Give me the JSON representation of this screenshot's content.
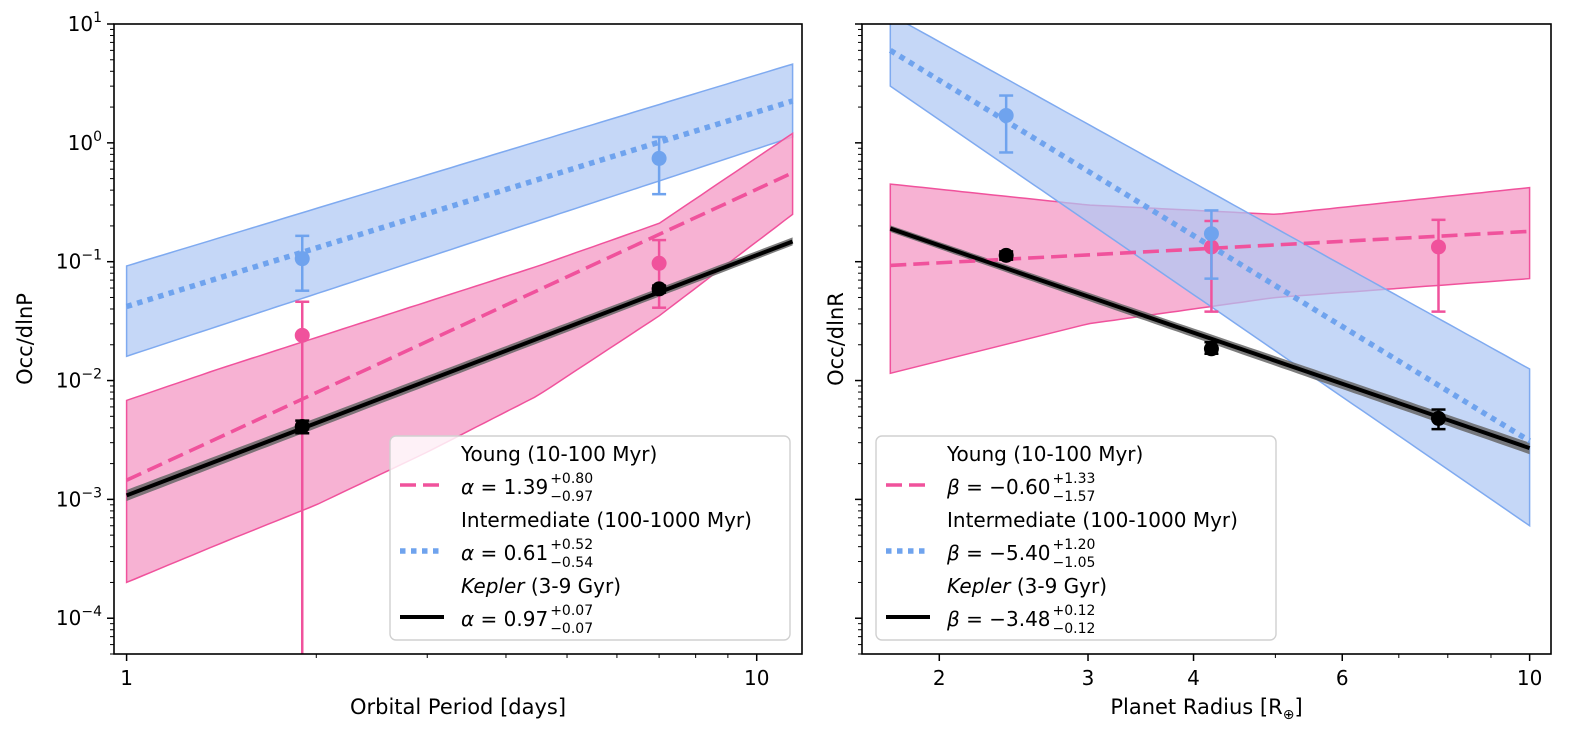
{
  "chart_data": [
    {
      "type": "line",
      "panel": "left",
      "xlabel": "Orbital Period [days]",
      "ylabel": "Occ/dlnP",
      "xscale": "log",
      "yscale": "log",
      "xlim": [
        0.955,
        11.8
      ],
      "ylim": [
        5e-05,
        10
      ],
      "xticks": [
        {
          "value": 1,
          "label": "1"
        },
        {
          "value": 10,
          "label": "10"
        }
      ],
      "yticks": [
        {
          "value": 0.0001,
          "base": "10",
          "exp": "−4"
        },
        {
          "value": 0.001,
          "base": "10",
          "exp": "−3"
        },
        {
          "value": 0.01,
          "base": "10",
          "exp": "−2"
        },
        {
          "value": 0.1,
          "base": "10",
          "exp": "−1"
        },
        {
          "value": 1,
          "base": "10",
          "exp": "0"
        },
        {
          "value": 10,
          "base": "10",
          "exp": "1"
        }
      ],
      "legend": {
        "location": "lower right",
        "entries": [
          {
            "series": "young",
            "name": "Young (10-100 Myr)",
            "param": "α",
            "value": "1.39",
            "sup": "+0.80",
            "sub": "−0.97"
          },
          {
            "series": "intermediate",
            "name": "Intermediate (100-1000 Myr)",
            "param": "α",
            "value": "0.61",
            "sup": "+0.52",
            "sub": "−0.54"
          },
          {
            "series": "kepler",
            "name": "Kepler",
            "name_rest": " (3-9 Gyr)",
            "param": "α",
            "value": "0.97",
            "sup": "+0.07",
            "sub": "−0.07"
          }
        ]
      },
      "series": [
        {
          "key": "intermediate",
          "name": "Intermediate (100-1000 Myr)",
          "color": "#6FA3EE",
          "line": "dotted",
          "fit": {
            "x": [
              1,
              11.4
            ],
            "y": [
              0.042,
              2.25
            ]
          },
          "band": {
            "x": [
              1,
              11.4
            ],
            "lower": [
              0.016,
              1.12
            ],
            "upper": [
              0.092,
              4.6
            ]
          },
          "points": [
            {
              "x": 1.9,
              "y": 0.106,
              "yerr_low": 0.057,
              "yerr_high": 0.165
            },
            {
              "x": 7.0,
              "y": 0.74,
              "yerr_low": 0.37,
              "yerr_high": 1.12
            }
          ]
        },
        {
          "key": "young",
          "name": "Young (10-100 Myr)",
          "color": "#F0529C",
          "line": "dashed",
          "fit": {
            "x": [
              1,
              11.4
            ],
            "y": [
              0.00145,
              0.56
            ]
          },
          "band": {
            "x": [
              1,
              1.4,
              2,
              3,
              4.5,
              7,
              11.4
            ],
            "lower": [
              0.0002,
              0.00042,
              0.0009,
              0.0025,
              0.0075,
              0.035,
              0.25
            ],
            "upper": [
              0.0068,
              0.0125,
              0.023,
              0.046,
              0.092,
              0.21,
              1.2
            ]
          },
          "points": [
            {
              "x": 1.9,
              "y": 0.024,
              "yerr_low": 1e-05,
              "yerr_high": 0.046
            },
            {
              "x": 7.0,
              "y": 0.097,
              "yerr_low": 0.041,
              "yerr_high": 0.152
            }
          ]
        },
        {
          "key": "kepler",
          "name": "Kepler (3-9 Gyr)",
          "color": "#000000",
          "line": "solid",
          "fit": {
            "x": [
              1,
              11.4
            ],
            "y": [
              0.00108,
              0.148
            ]
          },
          "band": {
            "x": [
              1,
              11.4
            ],
            "lower": [
              0.00097,
              0.137
            ],
            "upper": [
              0.0012,
              0.16
            ]
          },
          "points": [
            {
              "x": 1.9,
              "y": 0.0041,
              "yerr_low": 0.0036,
              "yerr_high": 0.0046
            },
            {
              "x": 7.0,
              "y": 0.059,
              "yerr_low": 0.055,
              "yerr_high": 0.063
            }
          ]
        }
      ]
    },
    {
      "type": "line",
      "panel": "right",
      "xlabel": "Planet Radius [R",
      "xlabel_symbol": "⊕",
      "xlabel_end": "]",
      "ylabel": "Occ/dlnR",
      "xscale": "log",
      "yscale": "log",
      "xlim": [
        1.62,
        10.6
      ],
      "ylim": [
        5e-05,
        10
      ],
      "xticks": [
        {
          "value": 2,
          "label": "2"
        },
        {
          "value": 3,
          "label": "3"
        },
        {
          "value": 4,
          "label": "4"
        },
        {
          "value": 6,
          "label": "6"
        },
        {
          "value": 10,
          "label": "10"
        }
      ],
      "legend": {
        "location": "lower left",
        "entries": [
          {
            "series": "young",
            "name": "Young (10-100 Myr)",
            "param": "β",
            "value": "−0.60",
            "sup": "+1.33",
            "sub": "−1.57"
          },
          {
            "series": "intermediate",
            "name": "Intermediate (100-1000 Myr)",
            "param": "β",
            "value": "−5.40",
            "sup": "+1.20",
            "sub": "−1.05"
          },
          {
            "series": "kepler",
            "name": "Kepler",
            "name_rest": " (3-9 Gyr)",
            "param": "β",
            "value": "−3.48",
            "sup": "+0.12",
            "sub": "−0.12"
          }
        ]
      },
      "series": [
        {
          "key": "young",
          "name": "Young (10-100 Myr)",
          "color": "#F0529C",
          "line": "dashed",
          "fit": {
            "x": [
              1.75,
              10
            ],
            "y": [
              0.093,
              0.18
            ]
          },
          "band": {
            "x": [
              1.75,
              3,
              5,
              10
            ],
            "lower": [
              0.0115,
              0.03,
              0.05,
              0.072
            ],
            "upper": [
              0.45,
              0.3,
              0.25,
              0.42
            ]
          },
          "points": [
            {
              "x": 4.2,
              "y": 0.133,
              "yerr_low": 0.038,
              "yerr_high": 0.22
            },
            {
              "x": 7.8,
              "y": 0.133,
              "yerr_low": 0.038,
              "yerr_high": 0.225
            }
          ]
        },
        {
          "key": "intermediate",
          "name": "Intermediate (100-1000 Myr)",
          "color": "#6FA3EE",
          "line": "dotted",
          "fit": {
            "x": [
              1.75,
              10
            ],
            "y": [
              6.0,
              0.0031
            ]
          },
          "band": {
            "x": [
              1.75,
              10
            ],
            "lower": [
              3.0,
              0.0006
            ],
            "upper": [
              12.0,
              0.0125
            ]
          },
          "points": [
            {
              "x": 2.4,
              "y": 1.7,
              "yerr_low": 0.83,
              "yerr_high": 2.5
            },
            {
              "x": 4.2,
              "y": 0.172,
              "yerr_low": 0.072,
              "yerr_high": 0.27
            }
          ]
        },
        {
          "key": "kepler",
          "name": "Kepler (3-9 Gyr)",
          "color": "#000000",
          "line": "solid",
          "fit": {
            "x": [
              1.75,
              10
            ],
            "y": [
              0.19,
              0.0027
            ]
          },
          "band": {
            "x": [
              1.75,
              10
            ],
            "lower": [
              0.178,
              0.0024
            ],
            "upper": [
              0.202,
              0.003
            ]
          },
          "points": [
            {
              "x": 2.4,
              "y": 0.113,
              "yerr_low": 0.104,
              "yerr_high": 0.122
            },
            {
              "x": 4.2,
              "y": 0.0185,
              "yerr_low": 0.0168,
              "yerr_high": 0.021
            },
            {
              "x": 7.8,
              "y": 0.0048,
              "yerr_low": 0.0039,
              "yerr_high": 0.0057
            }
          ]
        }
      ]
    }
  ]
}
